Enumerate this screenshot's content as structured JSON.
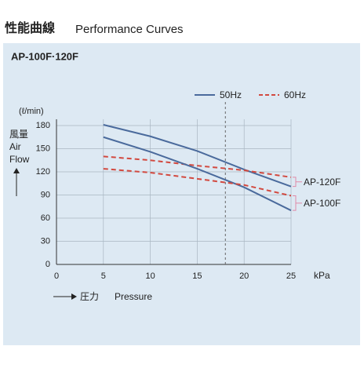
{
  "chart_data": {
    "type": "line",
    "title": "性能曲線",
    "title_en": "Performance Curves",
    "subtitle": "AP-100F·120F",
    "y_unit": "(ℓ/min)",
    "y_label": [
      "風量",
      "Air",
      "Flow"
    ],
    "x_unit": "kPa",
    "x_label": "圧力",
    "x_label_en": "Pressure",
    "x": [
      5,
      10,
      15,
      20,
      25
    ],
    "xlim": [
      0,
      25
    ],
    "xticks": [
      0,
      5,
      10,
      15,
      20,
      25
    ],
    "ylim": [
      0,
      180
    ],
    "yticks": [
      0,
      30,
      60,
      90,
      120,
      150,
      180
    ],
    "grid": true,
    "reference_x": 18,
    "models": [
      {
        "label": "AP-120F",
        "series": [
          {
            "name": "50Hz",
            "color": "#4a6a9c",
            "dashed": false,
            "values": [
              181,
              166,
              147,
              123,
              101
            ]
          },
          {
            "name": "60Hz",
            "color": "#d2493f",
            "dashed": true,
            "values": [
              140,
              135,
              128,
              122,
              113
            ]
          }
        ]
      },
      {
        "label": "AP-100F",
        "series": [
          {
            "name": "50Hz",
            "color": "#4a6a9c",
            "dashed": false,
            "values": [
              165,
              146,
              124,
              100,
              70
            ]
          },
          {
            "name": "60Hz",
            "color": "#d2493f",
            "dashed": true,
            "values": [
              124,
              119,
              111,
              103,
              89
            ]
          }
        ]
      }
    ]
  }
}
